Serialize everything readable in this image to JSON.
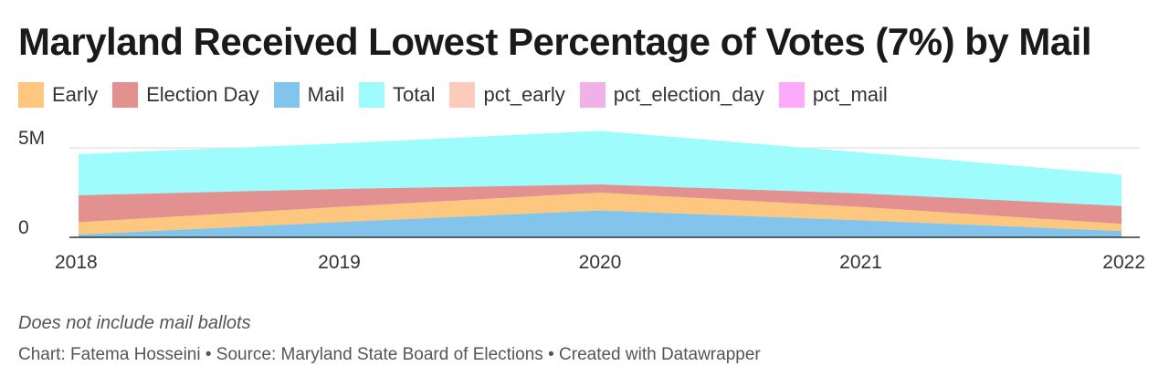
{
  "title": "Maryland Received Lowest Percentage of Votes (7%) by Mail",
  "note": "Does not include mail ballots",
  "credits": "Chart: Fatema Hosseini • Source: Maryland State Board of Elections • Created with Datawrapper",
  "legend": [
    {
      "label": "Early",
      "color": "#fdc77f"
    },
    {
      "label": "Election Day",
      "color": "#e39090"
    },
    {
      "label": "Mail",
      "color": "#82c4ec"
    },
    {
      "label": "Total",
      "color": "#9ffcfc"
    },
    {
      "label": "pct_early",
      "color": "#fdcbbd"
    },
    {
      "label": "pct_election_day",
      "color": "#f2b0e8"
    },
    {
      "label": "pct_mail",
      "color": "#fdaafb"
    }
  ],
  "chart_data": {
    "type": "area",
    "x": [
      "2018",
      "2019",
      "2020",
      "2021",
      "2022"
    ],
    "stacked_series": [
      {
        "name": "Mail",
        "color": "#82c4ec",
        "values": [
          0.15,
          0.85,
          1.5,
          0.95,
          0.35
        ]
      },
      {
        "name": "Early",
        "color": "#fdc77f",
        "values": [
          0.7,
          0.85,
          1.0,
          0.75,
          0.4
        ]
      },
      {
        "name": "Election Day",
        "color": "#e39090",
        "values": [
          1.5,
          1.0,
          0.45,
          0.75,
          1.0
        ]
      }
    ],
    "overlay_series": [
      {
        "name": "Total",
        "color": "#9ffcfc",
        "values": [
          4.65,
          5.25,
          5.95,
          4.75,
          3.5
        ]
      }
    ],
    "y_ticks": [
      {
        "value": 0,
        "label": "0"
      },
      {
        "value": 5,
        "label": "5M"
      }
    ],
    "ylim": [
      0,
      5.0
    ],
    "grid": true
  }
}
